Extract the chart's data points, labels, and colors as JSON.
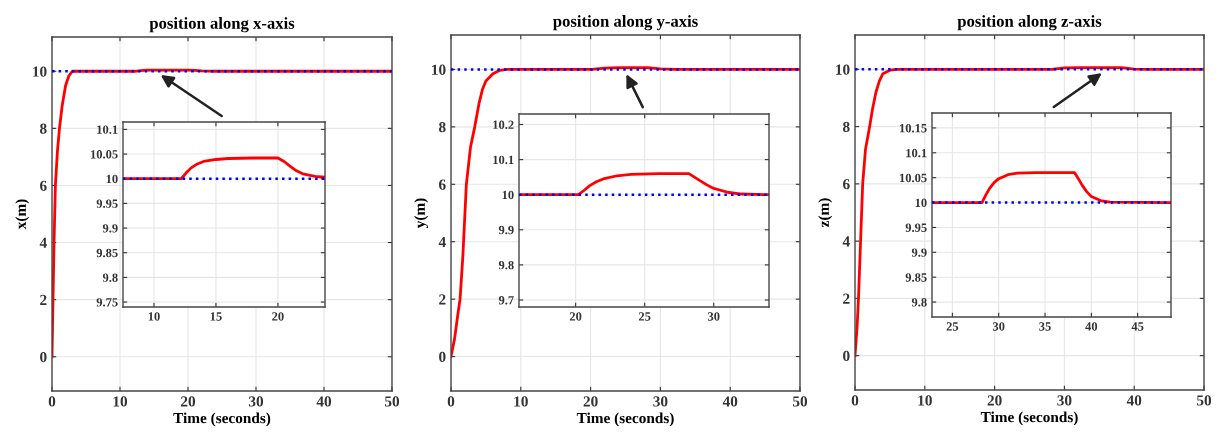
{
  "chart_data": [
    {
      "type": "line",
      "title": "position along x-axis",
      "xlabel": "Time (seconds)",
      "ylabel": "x(m)",
      "xlim": [
        0,
        50
      ],
      "ylim": [
        -1.2,
        11.2
      ],
      "xticks": [
        0,
        10,
        20,
        30,
        40,
        50
      ],
      "yticks": [
        0,
        2,
        4,
        6,
        8,
        10
      ],
      "grid": true,
      "series": [
        {
          "color": "#ff0000",
          "line_style": "solid",
          "x": [
            0,
            0.15,
            0.3,
            0.5,
            0.8,
            1.1,
            1.5,
            2,
            2.5,
            3,
            12.2,
            13,
            14,
            16,
            20,
            21,
            22,
            24,
            50
          ],
          "values": [
            0,
            2,
            4,
            6,
            7.2,
            8,
            8.8,
            9.5,
            9.85,
            10,
            10,
            10.02,
            10.04,
            10.04,
            10.04,
            10.03,
            10.01,
            10,
            10
          ]
        },
        {
          "color": "#0000ff",
          "line_style": "dotted",
          "x": [
            0,
            50
          ],
          "values": [
            10,
            10
          ]
        }
      ]
    },
    {
      "type": "line",
      "xlim": [
        7.5,
        23.8
      ],
      "ylim": [
        9.74,
        10.115
      ],
      "xticks": [
        10,
        15,
        20
      ],
      "yticks": [
        9.75,
        9.8,
        9.85,
        9.9,
        9.95,
        10,
        10.05,
        10.1
      ],
      "grid": true,
      "series": [
        {
          "color": "#ff0000",
          "line_style": "solid",
          "x": [
            7.5,
            12.2,
            12.6,
            13,
            13.5,
            14,
            15,
            16,
            18,
            20,
            20.5,
            21,
            21.5,
            22,
            23,
            23.8
          ],
          "values": [
            10,
            10,
            10.012,
            10.022,
            10.03,
            10.035,
            10.039,
            10.041,
            10.042,
            10.042,
            10.035,
            10.025,
            10.016,
            10.01,
            10.005,
            10.003
          ]
        },
        {
          "color": "#0000ff",
          "line_style": "dotted",
          "x": [
            7.5,
            23.8
          ],
          "values": [
            10,
            10
          ]
        }
      ]
    },
    {
      "type": "line",
      "title": "position along y-axis",
      "xlabel": "Time (seconds)",
      "ylabel": "y(m)",
      "xlim": [
        0,
        50
      ],
      "ylim": [
        -1.2,
        11.2
      ],
      "xticks": [
        0,
        10,
        20,
        30,
        40,
        50
      ],
      "yticks": [
        0,
        2,
        4,
        6,
        8,
        10
      ],
      "grid": true,
      "series": [
        {
          "color": "#ff0000",
          "line_style": "solid",
          "x": [
            0,
            0.5,
            1,
            1.3,
            1.7,
            2.2,
            2.8,
            3.4,
            4,
            4.5,
            5,
            6,
            7,
            8,
            20.2,
            22,
            24,
            28.2,
            30,
            32,
            50
          ],
          "values": [
            0,
            0.6,
            1.5,
            2,
            3.5,
            6,
            7.3,
            8,
            8.8,
            9.3,
            9.6,
            9.85,
            9.97,
            10,
            10,
            10.05,
            10.06,
            10.06,
            10.02,
            10,
            10
          ]
        },
        {
          "color": "#0000ff",
          "line_style": "dotted",
          "x": [
            0,
            50
          ],
          "values": [
            10,
            10
          ]
        }
      ]
    },
    {
      "type": "line",
      "xlim": [
        15.9,
        34
      ],
      "ylim": [
        9.68,
        10.23
      ],
      "xticks": [
        20,
        25,
        30
      ],
      "yticks": [
        9.7,
        9.8,
        9.9,
        10,
        10.1,
        10.2
      ],
      "grid": true,
      "series": [
        {
          "color": "#ff0000",
          "line_style": "solid",
          "x": [
            15.9,
            20.2,
            20.6,
            21,
            21.5,
            22,
            23,
            24,
            26,
            28.2,
            28.6,
            29,
            29.5,
            30,
            31,
            32,
            34
          ],
          "values": [
            10,
            10,
            10.012,
            10.025,
            10.037,
            10.045,
            10.054,
            10.058,
            10.06,
            10.06,
            10.05,
            10.04,
            10.028,
            10.018,
            10.007,
            10.002,
            10
          ]
        },
        {
          "color": "#0000ff",
          "line_style": "dotted",
          "x": [
            15.9,
            34
          ],
          "values": [
            10,
            10
          ]
        }
      ]
    },
    {
      "type": "line",
      "title": "position along z-axis",
      "xlabel": "Time (seconds)",
      "ylabel": "z(m)",
      "xlim": [
        0,
        50
      ],
      "ylim": [
        -1.2,
        11.2
      ],
      "xticks": [
        0,
        10,
        20,
        30,
        40,
        50
      ],
      "yticks": [
        0,
        2,
        4,
        6,
        8,
        10
      ],
      "grid": true,
      "series": [
        {
          "color": "#ff0000",
          "line_style": "solid",
          "x": [
            0,
            0.3,
            0.5,
            0.8,
            1.1,
            1.5,
            2.1,
            2.5,
            3,
            3.5,
            4,
            5,
            6,
            28.2,
            30,
            32,
            38.2,
            40,
            42,
            50
          ],
          "values": [
            0,
            1,
            2,
            4,
            6,
            7.2,
            8,
            8.6,
            9.2,
            9.6,
            9.85,
            9.97,
            10,
            10,
            10.05,
            10.06,
            10.06,
            10.01,
            10,
            10
          ]
        },
        {
          "color": "#0000ff",
          "line_style": "dotted",
          "x": [
            0,
            50
          ],
          "values": [
            10,
            10
          ]
        }
      ]
    },
    {
      "type": "line",
      "xlim": [
        22.8,
        48.6
      ],
      "ylim": [
        9.77,
        10.18
      ],
      "xticks": [
        25,
        30,
        35,
        40,
        45
      ],
      "yticks": [
        9.8,
        9.85,
        9.9,
        9.95,
        10,
        10.05,
        10.1,
        10.15
      ],
      "grid": true,
      "series": [
        {
          "color": "#ff0000",
          "line_style": "solid",
          "x": [
            22.8,
            28.2,
            28.6,
            29,
            29.5,
            30,
            31,
            32,
            34,
            36,
            38.2,
            38.6,
            39,
            39.5,
            40,
            41,
            42,
            48.6
          ],
          "values": [
            10,
            10,
            10.015,
            10.028,
            10.04,
            10.048,
            10.056,
            10.059,
            10.06,
            10.06,
            10.06,
            10.048,
            10.035,
            10.022,
            10.012,
            10.004,
            10.001,
            10
          ]
        },
        {
          "color": "#0000ff",
          "line_style": "dotted",
          "x": [
            22.8,
            48.6
          ],
          "values": [
            10,
            10
          ]
        }
      ]
    }
  ]
}
